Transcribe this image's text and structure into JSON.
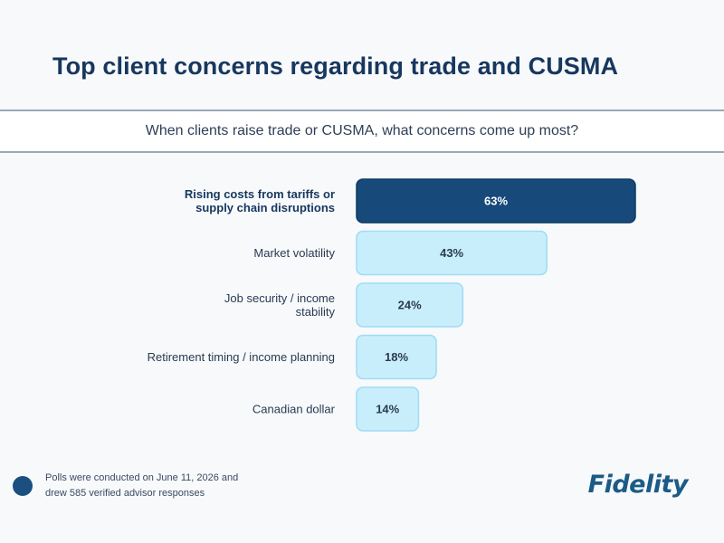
{
  "title": "Top client concerns regarding trade and CUSMA",
  "subtitle": "When clients raise trade or CUSMA, what concerns come up most?",
  "chart_data": {
    "type": "bar",
    "orientation": "horizontal",
    "title": "Top client concerns regarding trade and CUSMA",
    "subtitle": "When clients raise trade or CUSMA, what concerns come up most?",
    "unit": "%",
    "xlim": [
      0,
      63
    ],
    "grid": false,
    "legend": "none",
    "categories": [
      [
        "Rising costs from tariffs or",
        "supply chain disruptions"
      ],
      [
        "Market volatility"
      ],
      [
        "Job security / income",
        "stability"
      ],
      [
        "Retirement timing / income planning"
      ],
      [
        "Canadian dollar"
      ]
    ],
    "values": [
      63,
      43,
      24,
      18,
      14
    ],
    "value_labels": [
      "63%",
      "43%",
      "24%",
      "18%",
      "14%"
    ],
    "highlight_index": 0,
    "colors": {
      "highlight_bar": "#17497a",
      "highlight_border": "#0f3a63",
      "bar": "#c9eefb",
      "bar_border": "#9fdcf4",
      "highlight_text": "#ffffff",
      "text": "#2a3a52"
    }
  },
  "footnote": {
    "lines": [
      "Polls were conducted on June 11, 2026 and",
      "drew 585 verified advisor responses"
    ]
  },
  "logo": {
    "text": "Fidelity",
    "icon": "fidelity-logo"
  }
}
